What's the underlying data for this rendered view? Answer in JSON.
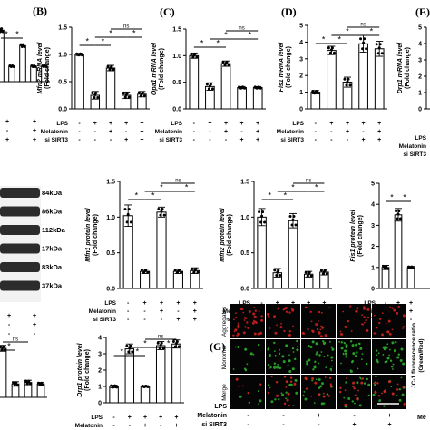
{
  "panel_labels": [
    "(B)",
    "(C)",
    "(D)",
    "(E)",
    "(G)"
  ],
  "row_labels": {
    "lps": "LPS",
    "melatonin": "Melatonin",
    "sisirt3": "si SIRT3",
    "me_partial": "Me"
  },
  "blot_kda": [
    "84kDa",
    "86kDa",
    "112kDa",
    "17kDa",
    "83kDa",
    "37kDa"
  ],
  "image_panel": {
    "rows": [
      "Aggregates",
      "Monomer",
      "Merge"
    ],
    "scale_bar": "150 μm",
    "ylabel": "JC-1 fluorescence ratio (Green/Red)"
  },
  "chart_data": [
    {
      "id": "A-top-partial",
      "type": "bar",
      "categories": [
        "1",
        "2",
        "3",
        "4",
        "5"
      ],
      "values": [
        1.0,
        0.3,
        0.7,
        0.3,
        0.3
      ],
      "ylim": [
        0,
        1.2
      ],
      "yticks": [],
      "sig_marks": [
        "*",
        "*"
      ]
    },
    {
      "id": "B",
      "type": "bar",
      "categories": [
        "1",
        "2",
        "3",
        "4",
        "5"
      ],
      "values": [
        1.0,
        0.25,
        0.75,
        0.25,
        0.27
      ],
      "errors": [
        0.02,
        0.07,
        0.05,
        0.06,
        0.05
      ],
      "ylim": [
        0,
        1.5
      ],
      "yticks": [
        "0.0",
        "0.5",
        "1.0",
        "1.5"
      ],
      "ylabel": "Mfn2 mRNA level (Fold change)",
      "sig_marks": [
        "*",
        "*",
        "*",
        "*",
        "ns"
      ],
      "row_signs": [
        [
          "-",
          "+",
          "+",
          "+",
          "+"
        ],
        [
          "-",
          "-",
          "+",
          "-",
          "+"
        ],
        [
          "-",
          "-",
          "-",
          "+",
          "+"
        ]
      ]
    },
    {
      "id": "C",
      "type": "bar",
      "categories": [
        "1",
        "2",
        "3",
        "4",
        "5"
      ],
      "values": [
        1.0,
        0.42,
        0.85,
        0.4,
        0.4
      ],
      "errors": [
        0.05,
        0.07,
        0.05,
        0.02,
        0.02
      ],
      "ylim": [
        0,
        1.5
      ],
      "yticks": [
        "0.0",
        "0.5",
        "1.0",
        "1.5"
      ],
      "ylabel": "Opa1 mRNA level (Fold change)",
      "sig_marks": [
        "*",
        "*",
        "*",
        "*",
        "ns"
      ],
      "row_signs": [
        [
          "-",
          "+",
          "+",
          "+",
          "+"
        ],
        [
          "-",
          "-",
          "+",
          "-",
          "+"
        ],
        [
          "-",
          "-",
          "-",
          "+",
          "+"
        ]
      ]
    },
    {
      "id": "D",
      "type": "bar",
      "categories": [
        "1",
        "2",
        "3",
        "4",
        "5"
      ],
      "values": [
        1.0,
        3.5,
        1.6,
        3.9,
        3.6
      ],
      "errors": [
        0.1,
        0.25,
        0.3,
        0.5,
        0.45
      ],
      "ylim": [
        0,
        5
      ],
      "yticks": [
        "0",
        "1",
        "2",
        "3",
        "4",
        "5"
      ],
      "ylabel": "Fis1 mRNA level (Fold change)",
      "sig_marks": [
        "*",
        "*",
        "*",
        "*",
        "ns"
      ],
      "row_signs": [
        [
          "-",
          "+",
          "+",
          "+",
          "+"
        ],
        [
          "-",
          "-",
          "+",
          "-",
          "+"
        ],
        [
          "-",
          "-",
          "-",
          "+",
          "+"
        ]
      ]
    },
    {
      "id": "E-partial",
      "type": "bar",
      "categories": [
        "1"
      ],
      "values": [
        0.0
      ],
      "ylim": [
        0,
        5
      ],
      "yticks": [
        "0",
        "1",
        "2",
        "3",
        "4",
        "5"
      ],
      "ylabel": "Drp1 mRNA level (Fold change)"
    },
    {
      "id": "Mfn1-protein",
      "type": "bar",
      "categories": [
        "1",
        "2",
        "3",
        "4",
        "5"
      ],
      "values": [
        1.02,
        0.24,
        1.07,
        0.24,
        0.25
      ],
      "errors": [
        0.15,
        0.03,
        0.07,
        0.03,
        0.04
      ],
      "ylim": [
        0,
        1.5
      ],
      "yticks": [
        "0.0",
        "0.5",
        "1.0",
        "1.5"
      ],
      "ylabel": "Mfn1 protein level (Fold change)",
      "sig_marks": [
        "*",
        "*",
        "*",
        "*",
        "ns"
      ],
      "row_signs": [
        [
          "-",
          "+",
          "+",
          "+",
          "+"
        ],
        [
          "-",
          "-",
          "+",
          "-",
          "+"
        ],
        [
          "-",
          "-",
          "-",
          "+",
          "+"
        ]
      ]
    },
    {
      "id": "Mfn2-protein",
      "type": "bar",
      "categories": [
        "1",
        "2",
        "3",
        "4",
        "5"
      ],
      "values": [
        1.0,
        0.22,
        0.95,
        0.2,
        0.23
      ],
      "errors": [
        0.12,
        0.06,
        0.1,
        0.04,
        0.04
      ],
      "ylim": [
        0,
        1.5
      ],
      "yticks": [
        "0.0",
        "0.5",
        "1.0",
        "1.5"
      ],
      "ylabel": "Mfn2 protein level (Fold change)",
      "sig_marks": [
        "*",
        "*",
        "*",
        "*",
        "ns"
      ],
      "row_signs": [
        [
          "-",
          "+",
          "+",
          "+",
          "+"
        ],
        [
          "-",
          "-",
          "+",
          "-",
          "+"
        ],
        [
          "-",
          "-",
          "-",
          "+",
          "+"
        ]
      ]
    },
    {
      "id": "Fis1-protein",
      "type": "bar",
      "categories": [
        "1",
        "2",
        "3",
        "4",
        "5"
      ],
      "values": [
        1.0,
        3.5,
        1.0,
        0.0,
        0.0
      ],
      "errors": [
        0.1,
        0.3,
        0.05,
        0,
        0
      ],
      "ylim": [
        0,
        5
      ],
      "yticks": [
        "0",
        "1",
        "2",
        "3",
        "4",
        "5"
      ],
      "ylabel": "Fis1 protein level (Fold change)",
      "sig_marks": [
        "*",
        "*"
      ],
      "row_signs": [
        [
          "-",
          "+",
          "+"
        ],
        [
          "-",
          "-",
          "+"
        ],
        [
          "-",
          "-",
          "-"
        ]
      ]
    },
    {
      "id": "bottom-left-partial",
      "type": "bar",
      "categories": [
        "1",
        "2",
        "3",
        "4",
        "5"
      ],
      "values": [
        3.3,
        3.3,
        0.9,
        1.0,
        0.9
      ],
      "errors": [
        0.2,
        0.2,
        0.15,
        0.15,
        0.1
      ],
      "ylim": [
        0,
        4.4
      ],
      "yticks": [],
      "sig_marks": [
        "*",
        "*",
        "ns"
      ]
    },
    {
      "id": "Drp1-protein",
      "type": "bar",
      "categories": [
        "1",
        "2",
        "3",
        "4",
        "5"
      ],
      "values": [
        1.0,
        3.3,
        1.0,
        3.5,
        3.6
      ],
      "errors": [
        0.08,
        0.3,
        0.05,
        0.25,
        0.25
      ],
      "ylim": [
        0,
        4
      ],
      "yticks": [
        "0",
        "1",
        "2",
        "3",
        "4"
      ],
      "ylabel": "Drp1 protein level (Fold change)",
      "sig_marks": [
        "*",
        "*",
        "*",
        "*",
        "ns"
      ],
      "row_signs": [
        [
          "-",
          "+",
          "+",
          "+",
          "+"
        ],
        [
          "-",
          "-",
          "+",
          "-",
          "+"
        ],
        [
          "-",
          "-",
          "-",
          "+",
          "+"
        ]
      ]
    }
  ],
  "image_row_signs": [
    [
      "-",
      "+",
      "+",
      "+",
      "+"
    ],
    [
      "-",
      "-",
      "+",
      "-",
      "+"
    ],
    [
      "-",
      "-",
      "-",
      "+",
      "+"
    ]
  ]
}
